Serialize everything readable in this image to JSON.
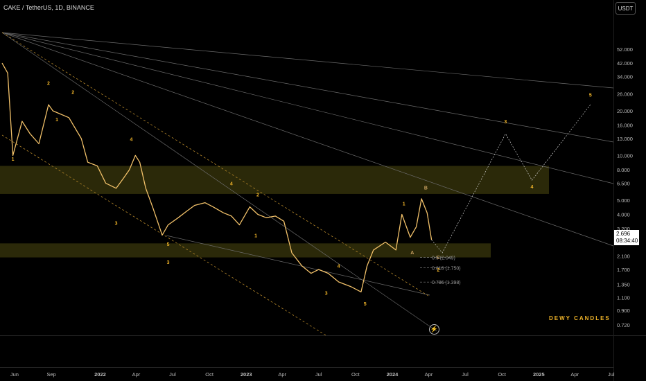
{
  "header": {
    "title": "CAKE / TetherUS, 1D, BINANCE",
    "currency": "USDT"
  },
  "price_tag": {
    "price": "2.696",
    "countdown": "08:34:40"
  },
  "watermark": "DEWY CANDLES",
  "icons": {
    "bolt": "lightning-bolt-icon"
  },
  "colors": {
    "wave_label": "#f0b429",
    "candle": "#f3c26a",
    "zone": "#33300a"
  },
  "chart_data": {
    "type": "line",
    "title": "CAKE / TetherUS, 1D, BINANCE",
    "xlabel": "",
    "ylabel": "",
    "y_scale": "log",
    "x_ticks": [
      "Jun",
      "Sep",
      "2022",
      "Apr",
      "Jul",
      "Oct",
      "2023",
      "Apr",
      "Jul",
      "Oct",
      "2024",
      "Apr",
      "Jul",
      "Oct",
      "2025",
      "Apr",
      "Jul"
    ],
    "y_ticks": [
      "52.000",
      "42.000",
      "34.000",
      "26.000",
      "20.000",
      "16.000",
      "13.000",
      "10.000",
      "8.000",
      "6.500",
      "5.000",
      "4.000",
      "3.200",
      "2.100",
      "1.700",
      "1.350",
      "1.100",
      "0.900",
      "0.720"
    ],
    "series": [
      {
        "x": [
          "2021-05-01",
          "2021-05-15",
          "2021-05-28",
          "2021-06-20",
          "2021-07-10",
          "2021-08-01",
          "2021-08-25",
          "2021-09-05",
          "2021-10-15",
          "2021-11-15",
          "2021-12-01",
          "2021-12-25",
          "2022-01-15",
          "2022-02-10",
          "2022-02-28",
          "2022-03-15",
          "2022-03-30",
          "2022-04-10",
          "2022-04-25",
          "2022-05-12",
          "2022-06-05",
          "2022-06-20",
          "2022-07-15",
          "2022-08-05",
          "2022-08-25",
          "2022-09-20",
          "2022-10-10",
          "2022-11-05",
          "2022-11-25",
          "2022-12-15",
          "2023-01-10",
          "2023-01-30",
          "2023-02-20",
          "2023-03-15",
          "2023-04-05",
          "2023-04-25",
          "2023-05-20",
          "2023-06-12",
          "2023-07-01",
          "2023-07-25",
          "2023-08-20",
          "2023-09-20",
          "2023-10-15",
          "2023-10-30",
          "2023-11-15",
          "2023-12-15",
          "2024-01-10",
          "2024-01-25",
          "2024-02-15",
          "2024-03-01",
          "2024-03-14",
          "2024-03-28",
          "2024-04-08"
        ],
        "values": [
          42,
          36,
          10,
          17,
          14,
          12,
          22,
          20,
          18,
          13,
          9,
          8.5,
          6.5,
          6,
          7,
          8,
          10,
          9,
          6,
          4.5,
          2.9,
          3.4,
          3.8,
          4.2,
          4.6,
          4.8,
          4.5,
          4.1,
          3.9,
          3.4,
          4.5,
          4.0,
          3.8,
          3.9,
          3.6,
          2.2,
          1.8,
          1.6,
          1.7,
          1.6,
          1.4,
          1.3,
          1.2,
          1.8,
          2.3,
          2.6,
          2.3,
          4.0,
          2.8,
          3.3,
          5.1,
          4.1,
          2.696
        ]
      }
    ],
    "fib_levels": [
      {
        "label": "0.5 (2.049)",
        "value": 2.049
      },
      {
        "label": "0.618 (1.750)",
        "value": 1.75
      },
      {
        "label": "0.786 (1.398)",
        "value": 1.398
      }
    ],
    "zones": [
      {
        "from": 5.5,
        "to": 8.5
      },
      {
        "from": 2.05,
        "to": 2.55
      }
    ],
    "projection": {
      "x": [
        "2024-04-08",
        "2024-05-05",
        "2024-10-10",
        "2024-12-15",
        "2025-05-10"
      ],
      "values": [
        2.696,
        2.2,
        14,
        6.8,
        22
      ]
    },
    "wave_labels": [
      {
        "text": "1",
        "x": "2021-05-28",
        "y": 9.2
      },
      {
        "text": "2",
        "x": "2021-08-25",
        "y": 30
      },
      {
        "text": "1",
        "x": "2021-09-15",
        "y": 17
      },
      {
        "text": "2",
        "x": "2021-10-25",
        "y": 26
      },
      {
        "text": "3",
        "x": "2022-02-10",
        "y": 3.4
      },
      {
        "text": "4",
        "x": "2022-03-20",
        "y": 12.5
      },
      {
        "text": "5",
        "x": "2022-06-20",
        "y": 2.45
      },
      {
        "text": "3",
        "x": "2022-06-20",
        "y": 1.85
      },
      {
        "text": "4",
        "x": "2022-11-25",
        "y": 6.3
      },
      {
        "text": "2",
        "x": "2023-01-30",
        "y": 5.3
      },
      {
        "text": "1",
        "x": "2023-01-25",
        "y": 2.8
      },
      {
        "text": "3",
        "x": "2023-07-20",
        "y": 1.15
      },
      {
        "text": "4",
        "x": "2023-08-20",
        "y": 1.75
      },
      {
        "text": "5",
        "x": "2023-10-25",
        "y": 0.97
      },
      {
        "text": "1",
        "x": "2024-01-30",
        "y": 4.6
      },
      {
        "text": "B",
        "x": "2024-03-25",
        "y": 5.9
      },
      {
        "text": "A",
        "x": "2024-02-20",
        "y": 2.15
      },
      {
        "text": "C",
        "x": "2024-04-25",
        "y": 2.0
      },
      {
        "text": "2",
        "x": "2024-04-25",
        "y": 1.65
      },
      {
        "text": "3",
        "x": "2024-10-10",
        "y": 16.5
      },
      {
        "text": "4",
        "x": "2024-12-15",
        "y": 6.0
      },
      {
        "text": "5",
        "x": "2025-05-10",
        "y": 25
      }
    ],
    "grid": false,
    "legend": "none"
  }
}
